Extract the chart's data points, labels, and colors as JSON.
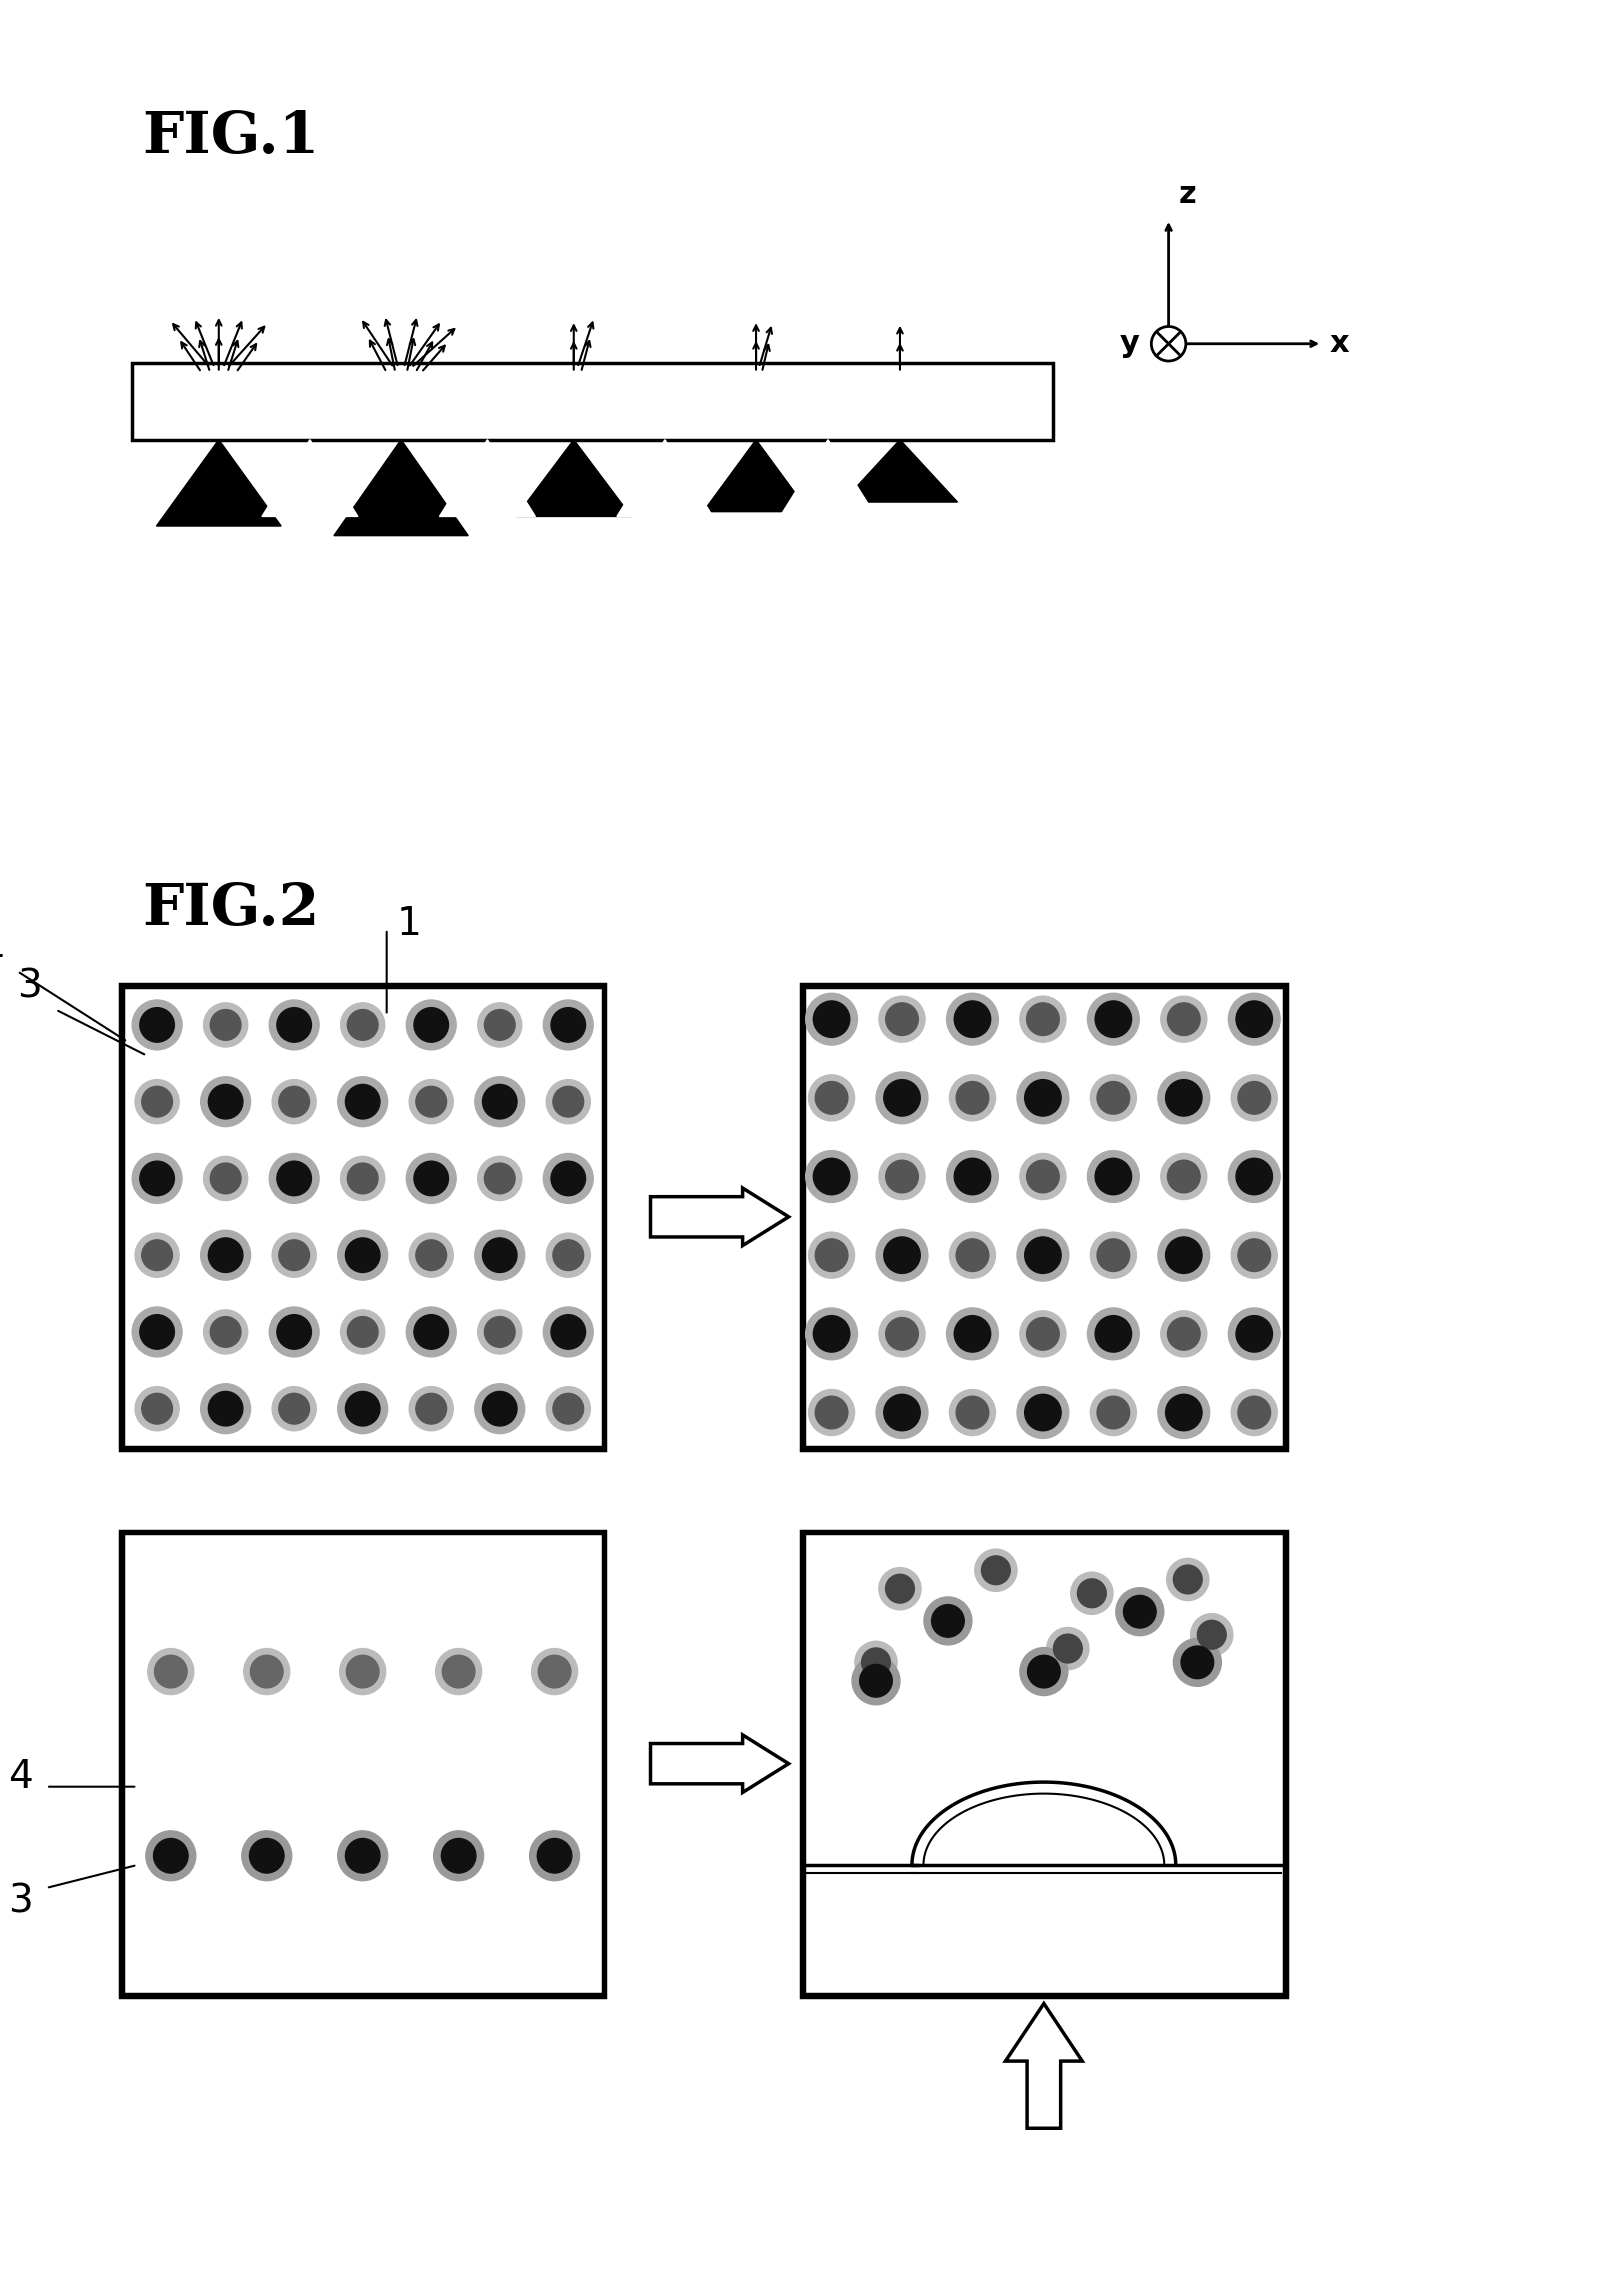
{
  "fig1_label": "FIG.1",
  "fig2_label": "FIG.2",
  "label_1": "1",
  "label_3": "3",
  "label_4": "4",
  "axis_x": "x",
  "axis_y": "y",
  "axis_z": "z",
  "bg_color": "#ffffff",
  "black": "#000000",
  "gray_dot": "#888888",
  "light_gray": "#cccccc"
}
